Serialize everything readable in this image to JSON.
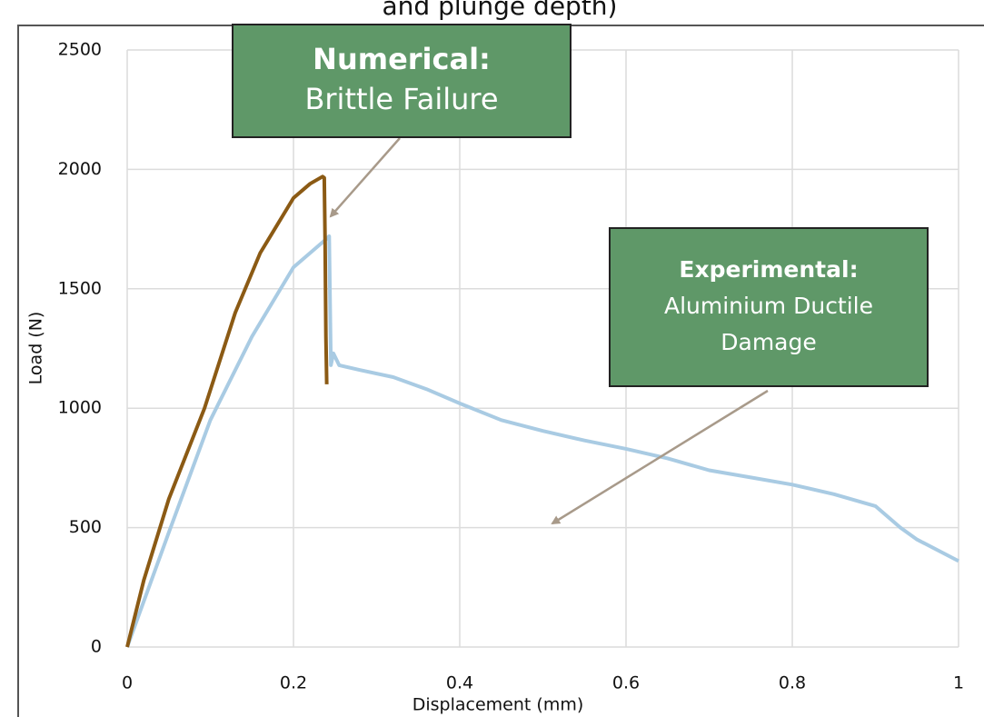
{
  "chart_data": {
    "type": "line",
    "title": "and plunge depth)",
    "xlabel": "Displacement (mm)",
    "ylabel": "Load (N)",
    "xlim": [
      0,
      1
    ],
    "xticks": [
      0,
      0.2,
      0.4,
      0.6,
      0.8,
      1
    ],
    "ylim": [
      0,
      2500
    ],
    "yticks": [
      0,
      500,
      1000,
      1500,
      2000,
      2500
    ],
    "grid": true,
    "series": [
      {
        "color": "#a9cbe3",
        "x": [
          0,
          0.05,
          0.1,
          0.15,
          0.2,
          0.24,
          0.243,
          0.245,
          0.248,
          0.255,
          0.28,
          0.32,
          0.36,
          0.4,
          0.45,
          0.5,
          0.55,
          0.6,
          0.65,
          0.7,
          0.75,
          0.8,
          0.85,
          0.9,
          0.93,
          0.95,
          1.0
        ],
        "values": [
          0,
          480,
          950,
          1300,
          1590,
          1710,
          1720,
          1180,
          1230,
          1180,
          1160,
          1130,
          1080,
          1020,
          950,
          905,
          865,
          830,
          790,
          740,
          710,
          680,
          640,
          590,
          500,
          450,
          360
        ]
      },
      {
        "color": "#8b5a14",
        "x": [
          0,
          0.02,
          0.05,
          0.093,
          0.13,
          0.16,
          0.2,
          0.22,
          0.235,
          0.237,
          0.238,
          0.239,
          0.24
        ],
        "values": [
          0,
          280,
          620,
          1000,
          1400,
          1650,
          1880,
          1940,
          1970,
          1965,
          1700,
          1300,
          1100
        ]
      }
    ],
    "annotations": [
      {
        "heading": "Numerical:",
        "body": [
          "Brittle Failure"
        ]
      },
      {
        "heading": "Experimental:",
        "body": [
          "Aluminium Ductile",
          "Damage"
        ]
      }
    ]
  }
}
